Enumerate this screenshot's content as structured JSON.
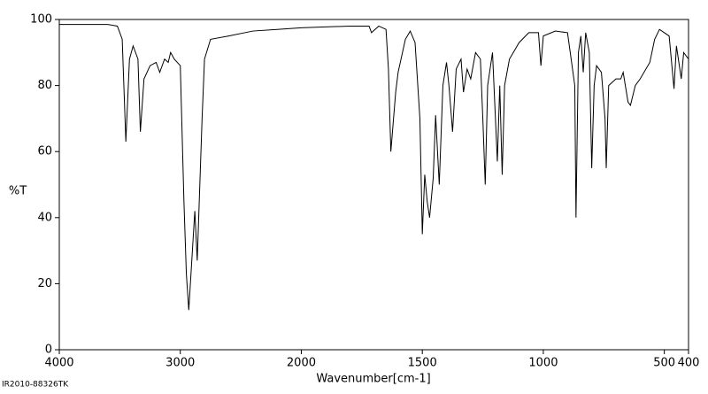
{
  "chart_data": {
    "type": "line",
    "xlabel": "Wavenumber[cm-1]",
    "ylabel": "%T",
    "footnote": "IR2010-88326TK",
    "color": "#000000",
    "xlim": [
      4000,
      400
    ],
    "x_break": 2000,
    "x_break_factor": 2,
    "xticks": [
      4000,
      3000,
      2000,
      1500,
      1000,
      500,
      400
    ],
    "ylim": [
      0,
      100
    ],
    "yticks": [
      0,
      20,
      40,
      60,
      80,
      100
    ],
    "x": [
      4000,
      3600,
      3520,
      3480,
      3450,
      3420,
      3390,
      3350,
      3330,
      3300,
      3250,
      3200,
      3170,
      3130,
      3100,
      3080,
      3050,
      3000,
      2970,
      2950,
      2930,
      2900,
      2880,
      2860,
      2820,
      2800,
      2750,
      2600,
      2400,
      2200,
      2000,
      1800,
      1720,
      1710,
      1680,
      1650,
      1640,
      1630,
      1610,
      1600,
      1570,
      1550,
      1530,
      1510,
      1500,
      1490,
      1480,
      1470,
      1455,
      1445,
      1430,
      1415,
      1400,
      1390,
      1375,
      1360,
      1340,
      1330,
      1315,
      1300,
      1280,
      1260,
      1250,
      1240,
      1230,
      1210,
      1190,
      1180,
      1170,
      1160,
      1140,
      1100,
      1060,
      1020,
      1010,
      1000,
      950,
      900,
      870,
      865,
      855,
      845,
      835,
      825,
      810,
      800,
      790,
      780,
      760,
      745,
      740,
      730,
      700,
      680,
      670,
      650,
      640,
      620,
      600,
      560,
      540,
      520,
      500,
      480,
      460,
      450,
      430,
      420,
      400
    ],
    "values": [
      98.5,
      98.5,
      98,
      94,
      63,
      88,
      92,
      88,
      66,
      82,
      86,
      87,
      84,
      88,
      87,
      90,
      88,
      86,
      45,
      23,
      12,
      30,
      42,
      27,
      70,
      88,
      94,
      95,
      96.5,
      97,
      97.5,
      98,
      98,
      96,
      98,
      97,
      85,
      60,
      78,
      84,
      94,
      96.5,
      93,
      70,
      35,
      53,
      45,
      40,
      52,
      71,
      50,
      80,
      87,
      80,
      66,
      85,
      88,
      78,
      85,
      82,
      90,
      88,
      70,
      50,
      80,
      90,
      57,
      80,
      53,
      80,
      88,
      93,
      96,
      96,
      86,
      95,
      96.5,
      96,
      80,
      40,
      90,
      95,
      84,
      96,
      90,
      55,
      80,
      86,
      84,
      70,
      55,
      80,
      82,
      82,
      84,
      75,
      74,
      80,
      82,
      87,
      94,
      97,
      96,
      95,
      79,
      92,
      82,
      90,
      88
    ]
  }
}
